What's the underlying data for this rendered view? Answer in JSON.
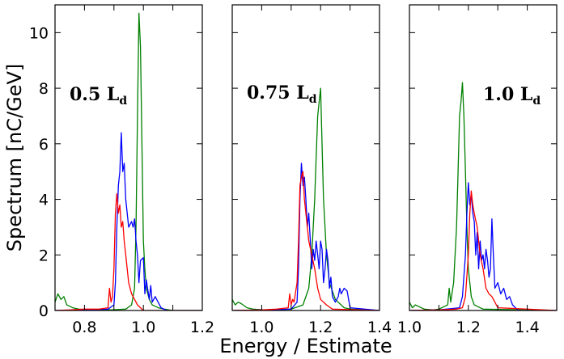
{
  "chart_data": {
    "type": "line",
    "ylabel": "Spectrum [nC/GeV]",
    "xlabel": "Energy / Estimate",
    "ylim": [
      0,
      11
    ],
    "yticks": [
      0,
      2,
      4,
      6,
      8,
      10
    ],
    "colors": {
      "blue": "#0000ff",
      "green": "#008000",
      "red": "#ff0000"
    },
    "panels": [
      {
        "label_main": "0.5 L",
        "label_sub": "d",
        "xlim": [
          0.7,
          1.2
        ],
        "xticks": [
          0.8,
          1.0,
          1.2
        ],
        "xtick_labels": [
          "0.8",
          "1.0",
          "1.2"
        ],
        "series": [
          {
            "name": "green",
            "color": "#008000",
            "x": [
              0.7,
              0.71,
              0.72,
              0.73,
              0.74,
              0.76,
              0.78,
              0.8,
              0.85,
              0.9,
              0.94,
              0.96,
              0.97,
              0.975,
              0.98,
              0.985,
              0.99,
              0.995,
              1.0,
              1.005,
              1.01,
              1.02,
              1.03,
              1.05,
              1.07,
              1.1,
              1.2
            ],
            "y": [
              0.3,
              0.6,
              0.4,
              0.5,
              0.2,
              0.1,
              0.05,
              0.03,
              0.02,
              0.03,
              0.05,
              0.2,
              0.8,
              3.0,
              7.0,
              10.7,
              9.5,
              6.0,
              2.5,
              1.5,
              0.8,
              0.4,
              0.2,
              0.1,
              0.05,
              0.0,
              0.0
            ]
          },
          {
            "name": "blue",
            "color": "#0000ff",
            "x": [
              0.7,
              0.8,
              0.88,
              0.9,
              0.905,
              0.91,
              0.915,
              0.92,
              0.925,
              0.93,
              0.935,
              0.94,
              0.945,
              0.95,
              0.96,
              0.965,
              0.97,
              0.975,
              0.98,
              0.985,
              0.99,
              1.0,
              1.005,
              1.01,
              1.02,
              1.025,
              1.03,
              1.04,
              1.05,
              1.06,
              1.08,
              1.2
            ],
            "y": [
              0.0,
              0.02,
              0.05,
              0.2,
              1.0,
              3.0,
              4.5,
              5.0,
              6.4,
              5.0,
              5.3,
              4.0,
              3.5,
              3.0,
              3.2,
              3.0,
              3.3,
              2.5,
              2.0,
              1.0,
              1.8,
              1.9,
              0.6,
              1.1,
              0.4,
              0.9,
              0.3,
              0.5,
              0.3,
              0.1,
              0.0,
              0.0
            ]
          },
          {
            "name": "red",
            "color": "#ff0000",
            "x": [
              0.7,
              0.75,
              0.8,
              0.85,
              0.88,
              0.885,
              0.89,
              0.895,
              0.9,
              0.905,
              0.91,
              0.915,
              0.92,
              0.925,
              0.93,
              0.935,
              0.94,
              0.945,
              0.95,
              0.96,
              0.97,
              0.98,
              0.99,
              1.0,
              1.2
            ],
            "y": [
              0.0,
              0.02,
              0.05,
              0.05,
              0.1,
              0.8,
              0.3,
              0.5,
              1.5,
              3.5,
              4.2,
              3.5,
              3.8,
              3.0,
              3.2,
              2.5,
              2.0,
              1.5,
              1.0,
              0.6,
              0.4,
              0.2,
              0.1,
              0.0,
              0.0
            ]
          }
        ]
      },
      {
        "label_main": "0.75 L",
        "label_sub": "d",
        "xlim": [
          0.9,
          1.4
        ],
        "xticks": [
          1.0,
          1.2,
          1.4
        ],
        "xtick_labels": [
          "1.0",
          "1.2",
          "1.4"
        ],
        "series": [
          {
            "name": "green",
            "color": "#008000",
            "x": [
              0.9,
              0.91,
              0.92,
              0.93,
              0.95,
              0.97,
              1.0,
              1.05,
              1.1,
              1.14,
              1.16,
              1.17,
              1.18,
              1.185,
              1.19,
              1.195,
              1.2,
              1.205,
              1.21,
              1.22,
              1.23,
              1.25,
              1.28,
              1.3,
              1.4
            ],
            "y": [
              0.4,
              0.2,
              0.3,
              0.25,
              0.1,
              0.05,
              0.03,
              0.02,
              0.05,
              0.2,
              0.8,
              2.0,
              4.0,
              5.5,
              7.0,
              7.5,
              8.0,
              6.0,
              4.0,
              2.0,
              1.0,
              0.4,
              0.1,
              0.05,
              0.0
            ]
          },
          {
            "name": "blue",
            "color": "#0000ff",
            "x": [
              0.9,
              1.0,
              1.1,
              1.12,
              1.125,
              1.13,
              1.135,
              1.14,
              1.145,
              1.15,
              1.155,
              1.16,
              1.165,
              1.17,
              1.175,
              1.18,
              1.185,
              1.19,
              1.195,
              1.2,
              1.205,
              1.21,
              1.215,
              1.22,
              1.225,
              1.23,
              1.235,
              1.24,
              1.25,
              1.26,
              1.265,
              1.27,
              1.28,
              1.29,
              1.3,
              1.4
            ],
            "y": [
              0.0,
              0.02,
              0.05,
              0.3,
              1.5,
              4.0,
              5.3,
              4.5,
              4.8,
              4.0,
              3.0,
              3.5,
              2.5,
              1.5,
              2.2,
              1.8,
              2.5,
              2.0,
              1.5,
              2.5,
              2.2,
              1.0,
              1.5,
              2.2,
              1.8,
              0.8,
              1.2,
              0.5,
              0.3,
              0.5,
              0.8,
              0.6,
              0.8,
              0.7,
              0.1,
              0.0
            ]
          },
          {
            "name": "red",
            "color": "#ff0000",
            "x": [
              0.9,
              1.0,
              1.05,
              1.09,
              1.095,
              1.1,
              1.105,
              1.11,
              1.12,
              1.125,
              1.13,
              1.135,
              1.14,
              1.145,
              1.15,
              1.155,
              1.16,
              1.17,
              1.18,
              1.19,
              1.2,
              1.22,
              1.24,
              1.4
            ],
            "y": [
              0.0,
              0.02,
              0.05,
              0.1,
              0.6,
              0.2,
              0.4,
              0.3,
              1.0,
              2.5,
              4.5,
              4.8,
              5.0,
              4.0,
              3.5,
              3.0,
              2.5,
              2.0,
              1.5,
              0.8,
              0.4,
              0.2,
              0.05,
              0.0
            ]
          }
        ]
      },
      {
        "label_main": "1.0 L",
        "label_sub": "d",
        "xlim": [
          1.0,
          1.5
        ],
        "xticks": [
          1.0,
          1.2,
          1.4
        ],
        "xtick_labels": [
          "1.0",
          "1.2",
          "1.4"
        ],
        "series": [
          {
            "name": "green",
            "color": "#008000",
            "x": [
              1.0,
              1.01,
              1.02,
              1.03,
              1.05,
              1.08,
              1.1,
              1.13,
              1.135,
              1.14,
              1.15,
              1.16,
              1.165,
              1.17,
              1.175,
              1.18,
              1.185,
              1.19,
              1.195,
              1.2,
              1.21,
              1.22,
              1.25,
              1.5
            ],
            "y": [
              0.3,
              0.1,
              0.2,
              0.15,
              0.05,
              0.02,
              0.05,
              0.2,
              0.8,
              0.3,
              1.0,
              3.0,
              5.0,
              7.0,
              7.5,
              8.2,
              7.0,
              5.0,
              3.0,
              1.5,
              0.5,
              0.2,
              0.05,
              0.0
            ]
          },
          {
            "name": "blue",
            "color": "#0000ff",
            "x": [
              1.0,
              1.1,
              1.17,
              1.18,
              1.19,
              1.195,
              1.2,
              1.205,
              1.21,
              1.215,
              1.22,
              1.225,
              1.23,
              1.235,
              1.24,
              1.245,
              1.25,
              1.255,
              1.26,
              1.265,
              1.27,
              1.275,
              1.28,
              1.285,
              1.29,
              1.3,
              1.31,
              1.32,
              1.33,
              1.34,
              1.35,
              1.36,
              1.37,
              1.5
            ],
            "y": [
              0.0,
              0.02,
              0.1,
              0.5,
              2.0,
              3.5,
              4.6,
              3.8,
              4.2,
              3.5,
              3.2,
              2.0,
              2.8,
              1.5,
              2.5,
              1.8,
              2.0,
              1.5,
              2.2,
              1.8,
              1.2,
              1.5,
              3.3,
              2.0,
              0.8,
              1.0,
              0.6,
              0.8,
              0.4,
              0.5,
              0.2,
              0.1,
              0.0,
              0.0
            ]
          },
          {
            "name": "red",
            "color": "#ff0000",
            "x": [
              1.0,
              1.1,
              1.16,
              1.18,
              1.19,
              1.2,
              1.205,
              1.21,
              1.215,
              1.22,
              1.23,
              1.24,
              1.25,
              1.26,
              1.27,
              1.28,
              1.29,
              1.3,
              1.5
            ],
            "y": [
              0.0,
              0.02,
              0.05,
              0.1,
              0.5,
              2.0,
              3.5,
              4.3,
              3.8,
              3.5,
              3.0,
              2.0,
              1.5,
              0.8,
              0.6,
              0.5,
              0.3,
              0.1,
              0.0
            ]
          }
        ]
      }
    ]
  }
}
